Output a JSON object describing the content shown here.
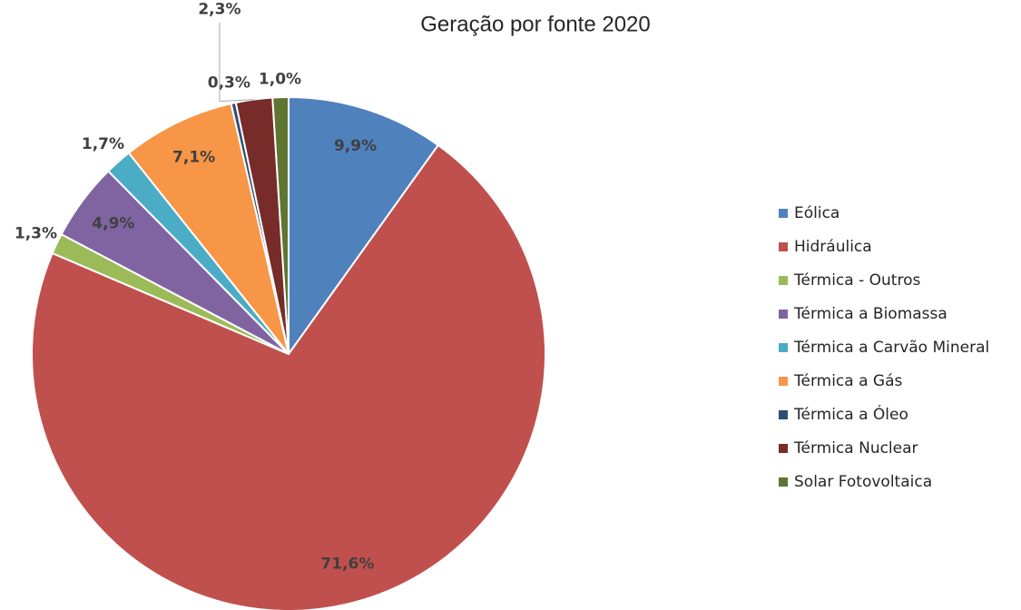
{
  "chart_data": {
    "type": "pie",
    "title": "Geração por fonte 2020",
    "categories": [
      "Eólica",
      "Hidráulica",
      "Térmica - Outros",
      "Térmica a Biomassa",
      "Térmica a Carvão Mineral",
      "Térmica a Gás",
      "Térmica a Óleo",
      "Térmica Nuclear",
      "Solar Fotovoltaica"
    ],
    "values": [
      9.9,
      71.6,
      1.3,
      4.9,
      1.7,
      7.1,
      0.3,
      2.3,
      1.0
    ],
    "value_labels": [
      "9,9%",
      "71,6%",
      "1,3%",
      "4,9%",
      "1,7%",
      "7,1%",
      "0,3%",
      "2,3%",
      "1,0%"
    ],
    "colors": [
      "#4f81bd",
      "#c0504d",
      "#9bbb59",
      "#8064a2",
      "#4bacc6",
      "#f79646",
      "#2c4d75",
      "#772c2a",
      "#5f7530"
    ],
    "legend": "right"
  }
}
